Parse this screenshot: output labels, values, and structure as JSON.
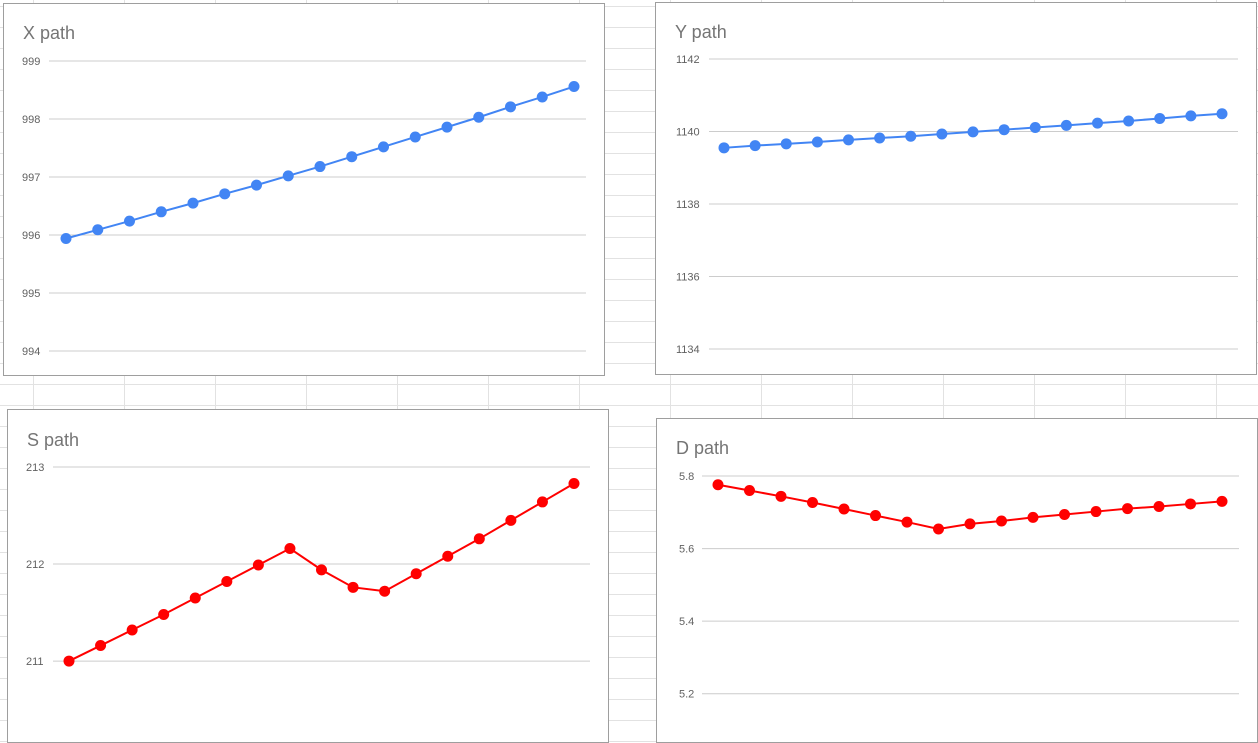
{
  "chart_data": [
    {
      "type": "line",
      "title": "X path",
      "xlabel": "",
      "ylabel": "",
      "ylim": [
        994,
        999
      ],
      "yticks": [
        994,
        995,
        996,
        997,
        998,
        999
      ],
      "grid": true,
      "legend": "none",
      "x": [
        1,
        2,
        3,
        4,
        5,
        6,
        7,
        8,
        9,
        10,
        11,
        12,
        13,
        14,
        15,
        16,
        17
      ],
      "series": [
        {
          "color": "#4285f4",
          "values": [
            995.94,
            996.09,
            996.24,
            996.4,
            996.55,
            996.71,
            996.86,
            997.02,
            997.18,
            997.35,
            997.52,
            997.69,
            997.86,
            998.03,
            998.21,
            998.38,
            998.56
          ]
        }
      ]
    },
    {
      "type": "line",
      "title": "Y path",
      "xlabel": "",
      "ylabel": "",
      "ylim": [
        1134,
        1142
      ],
      "yticks": [
        1134,
        1136,
        1138,
        1140,
        1142
      ],
      "grid": true,
      "legend": "none",
      "x": [
        1,
        2,
        3,
        4,
        5,
        6,
        7,
        8,
        9,
        10,
        11,
        12,
        13,
        14,
        15,
        16,
        17
      ],
      "series": [
        {
          "color": "#4285f4",
          "values": [
            1139.55,
            1139.61,
            1139.66,
            1139.71,
            1139.77,
            1139.82,
            1139.87,
            1139.93,
            1139.99,
            1140.05,
            1140.11,
            1140.17,
            1140.23,
            1140.29,
            1140.36,
            1140.43,
            1140.49
          ]
        }
      ]
    },
    {
      "type": "line",
      "title": "S path",
      "xlabel": "",
      "ylabel": "",
      "ylim": [
        210.3,
        213
      ],
      "yticks": [
        211,
        212,
        213
      ],
      "grid": true,
      "legend": "none",
      "x": [
        1,
        2,
        3,
        4,
        5,
        6,
        7,
        8,
        9,
        10,
        11,
        12,
        13,
        14,
        15,
        16,
        17
      ],
      "series": [
        {
          "color": "#ff0000",
          "values": [
            211.0,
            211.16,
            211.32,
            211.48,
            211.65,
            211.82,
            211.99,
            212.16,
            211.94,
            211.76,
            211.72,
            211.9,
            212.08,
            212.26,
            212.45,
            212.64,
            212.83
          ]
        }
      ]
    },
    {
      "type": "line",
      "title": "D path",
      "xlabel": "",
      "ylabel": "",
      "ylim": [
        5.1,
        5.8
      ],
      "yticks": [
        5.2,
        5.4,
        5.6,
        5.8
      ],
      "grid": true,
      "legend": "none",
      "x": [
        1,
        2,
        3,
        4,
        5,
        6,
        7,
        8,
        9,
        10,
        11,
        12,
        13,
        14,
        15,
        16,
        17
      ],
      "series": [
        {
          "color": "#ff0000",
          "values": [
            5.776,
            5.76,
            5.744,
            5.727,
            5.709,
            5.691,
            5.673,
            5.654,
            5.668,
            5.676,
            5.686,
            5.694,
            5.702,
            5.71,
            5.716,
            5.723,
            5.73
          ]
        }
      ]
    }
  ]
}
